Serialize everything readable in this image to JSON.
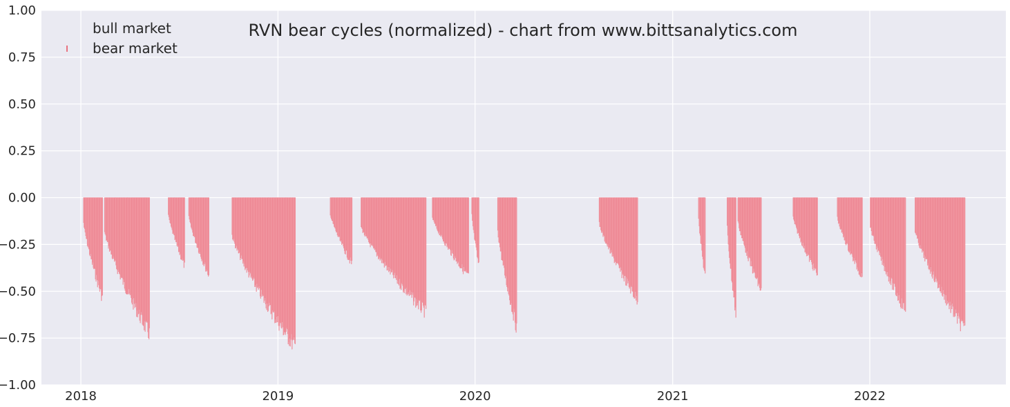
{
  "chart_data": {
    "type": "bar",
    "title": "RVN bear cycles (normalized)  - chart from www.bittsanalytics.com",
    "xlabel": "",
    "ylabel": "",
    "x_axis_type": "date",
    "xlim": [
      "2017-10-20",
      "2022-09-10"
    ],
    "ylim": [
      -1.0,
      1.0
    ],
    "x_ticks": [
      "2018-01-01",
      "2019-01-01",
      "2020-01-01",
      "2021-01-01",
      "2022-01-01"
    ],
    "x_tick_labels": [
      "2018",
      "2019",
      "2020",
      "2021",
      "2022"
    ],
    "y_ticks": [
      1.0,
      0.75,
      0.5,
      0.25,
      0.0,
      -0.25,
      -0.5,
      -0.75,
      -1.0
    ],
    "y_tick_labels": [
      "1.00",
      "0.75",
      "0.50",
      "0.25",
      "0.00",
      "−0.25",
      "−0.50",
      "−0.75",
      "−1.00"
    ],
    "grid": true,
    "legend_position": "top-left",
    "colors": {
      "background": "#eaeaf2",
      "grid": "#ffffff",
      "bear_fill": "#f4a0aa",
      "bear_edge": "#e8717f",
      "text": "#262626"
    },
    "series": [
      {
        "name": "bull market",
        "values": []
      },
      {
        "name": "bear market",
        "episodes": [
          {
            "start": "2018-01-06",
            "end": "2018-02-10",
            "min": -0.56
          },
          {
            "start": "2018-02-14",
            "end": "2018-05-08",
            "min": -0.76
          },
          {
            "start": "2018-06-12",
            "end": "2018-07-12",
            "min": -0.38
          },
          {
            "start": "2018-07-20",
            "end": "2018-08-26",
            "min": -0.43
          },
          {
            "start": "2018-10-08",
            "end": "2019-02-02",
            "min": -0.83
          },
          {
            "start": "2019-04-08",
            "end": "2019-05-18",
            "min": -0.37
          },
          {
            "start": "2019-06-04",
            "end": "2019-10-02",
            "min": -0.64
          },
          {
            "start": "2019-10-14",
            "end": "2019-12-20",
            "min": -0.44
          },
          {
            "start": "2019-12-26",
            "end": "2020-01-08",
            "min": -0.38
          },
          {
            "start": "2020-02-12",
            "end": "2020-03-18",
            "min": -0.72
          },
          {
            "start": "2020-08-18",
            "end": "2020-10-28",
            "min": -0.57
          },
          {
            "start": "2021-02-18",
            "end": "2021-03-02",
            "min": -0.44
          },
          {
            "start": "2021-04-12",
            "end": "2021-04-28",
            "min": -0.65
          },
          {
            "start": "2021-05-02",
            "end": "2021-06-14",
            "min": -0.52
          },
          {
            "start": "2021-08-12",
            "end": "2021-09-26",
            "min": -0.43
          },
          {
            "start": "2021-11-02",
            "end": "2021-12-18",
            "min": -0.44
          },
          {
            "start": "2022-01-02",
            "end": "2022-03-08",
            "min": -0.63
          },
          {
            "start": "2022-03-26",
            "end": "2022-06-26",
            "min": -0.74
          }
        ]
      }
    ]
  }
}
